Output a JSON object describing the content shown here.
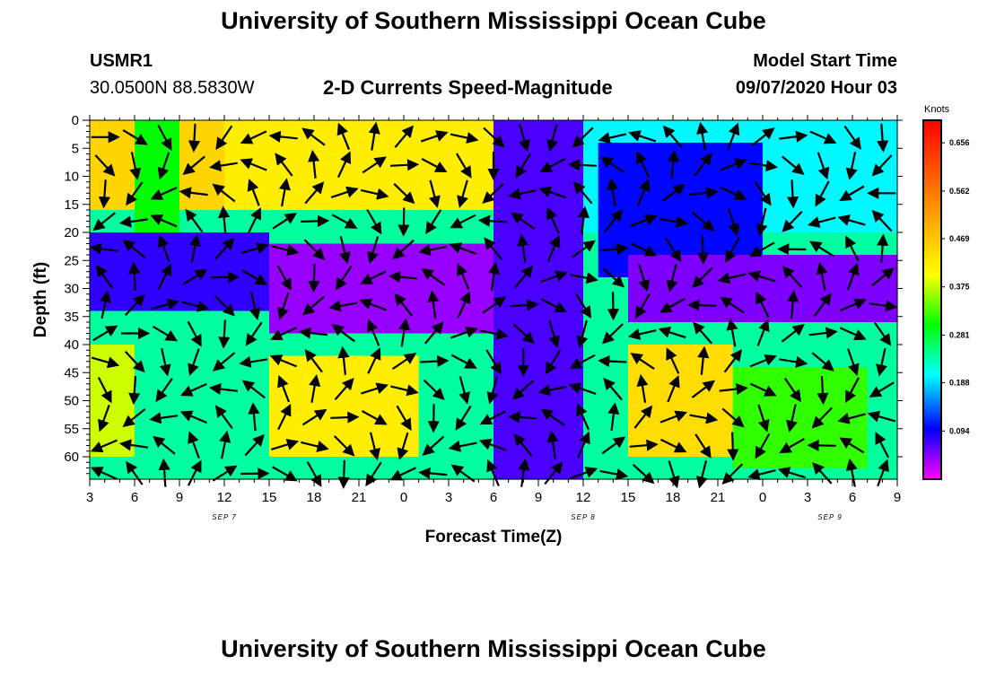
{
  "header": {
    "title_top": "University of Southern Mississippi Ocean Cube",
    "title_bottom": "University of Southern Mississippi Ocean Cube",
    "station_id": "USMR1",
    "station_coords": "30.0500N 88.5830W",
    "subtitle": "2-D Currents Speed-Magnitude",
    "model_label": "Model Start Time",
    "model_time": "09/07/2020 Hour 03"
  },
  "colors": {
    "magenta": "#ff00ff",
    "blue": "#0000ff",
    "cyan": "#00ffff",
    "green": "#00ff00",
    "yellow": "#ffff00",
    "orange": "#ff7f00",
    "red": "#ff0000"
  },
  "chart_data": {
    "type": "heatmap",
    "xlabel": "Forecast Time(Z)",
    "ylabel": "Depth (ft)",
    "x_ticks": [
      "3",
      "6",
      "9",
      "12",
      "15",
      "18",
      "21",
      "0",
      "3",
      "6",
      "9",
      "12",
      "15",
      "18",
      "21",
      "0",
      "3",
      "6",
      "9"
    ],
    "x_range_hours_from_start": [
      0,
      54
    ],
    "date_labels": [
      {
        "label": "SEP 7",
        "at_tick": 3.0
      },
      {
        "label": "SEP 8",
        "at_tick": 11.0
      },
      {
        "label": "SEP 9",
        "at_tick": 16.5
      }
    ],
    "y_ticks": [
      0,
      5,
      10,
      15,
      20,
      25,
      30,
      35,
      40,
      45,
      50,
      55,
      60
    ],
    "ylim": [
      0,
      64
    ],
    "y_inverted": true,
    "colorbar": {
      "title": "Knots",
      "labels": [
        "0.656",
        "0.562",
        "0.469",
        "0.375",
        "0.281",
        "0.188",
        "0.094"
      ],
      "values": [
        0.656,
        0.562,
        0.469,
        0.375,
        0.281,
        0.188,
        0.094
      ],
      "range": [
        0.0,
        0.7
      ]
    },
    "speed_regions": [
      {
        "x": [
          0,
          9
        ],
        "y": [
          0,
          16
        ],
        "knots": 0.45
      },
      {
        "x": [
          9,
          27
        ],
        "y": [
          0,
          16
        ],
        "knots": 0.42
      },
      {
        "x": [
          3,
          6
        ],
        "y": [
          0,
          20
        ],
        "knots": 0.3
      },
      {
        "x": [
          0,
          12
        ],
        "y": [
          20,
          34
        ],
        "knots": 0.08
      },
      {
        "x": [
          12,
          27
        ],
        "y": [
          22,
          38
        ],
        "knots": 0.04
      },
      {
        "x": [
          27,
          33
        ],
        "y": [
          0,
          64
        ],
        "knots": 0.07
      },
      {
        "x": [
          33,
          54
        ],
        "y": [
          0,
          20
        ],
        "knots": 0.2
      },
      {
        "x": [
          34,
          45
        ],
        "y": [
          5,
          28
        ],
        "knots": 0.1
      },
      {
        "x": [
          36,
          54
        ],
        "y": [
          24,
          36
        ],
        "knots": 0.05
      },
      {
        "x": [
          0,
          3
        ],
        "y": [
          40,
          60
        ],
        "knots": 0.38
      },
      {
        "x": [
          12,
          22
        ],
        "y": [
          43,
          60
        ],
        "knots": 0.42
      },
      {
        "x": [
          36,
          43
        ],
        "y": [
          40,
          60
        ],
        "knots": 0.44
      },
      {
        "x": [
          43,
          52
        ],
        "y": [
          45,
          62
        ],
        "knots": 0.32
      }
    ],
    "vector_rows_ft": [
      3,
      8,
      13,
      18,
      23,
      28,
      33,
      38,
      43,
      48,
      53,
      58,
      63
    ],
    "vector_cols_hours": [
      1,
      3,
      5,
      7,
      9,
      11,
      13,
      15,
      17,
      19,
      21,
      23,
      25,
      27,
      29,
      31,
      33,
      35,
      37,
      39,
      41,
      43,
      45,
      47,
      49,
      51,
      53
    ]
  }
}
